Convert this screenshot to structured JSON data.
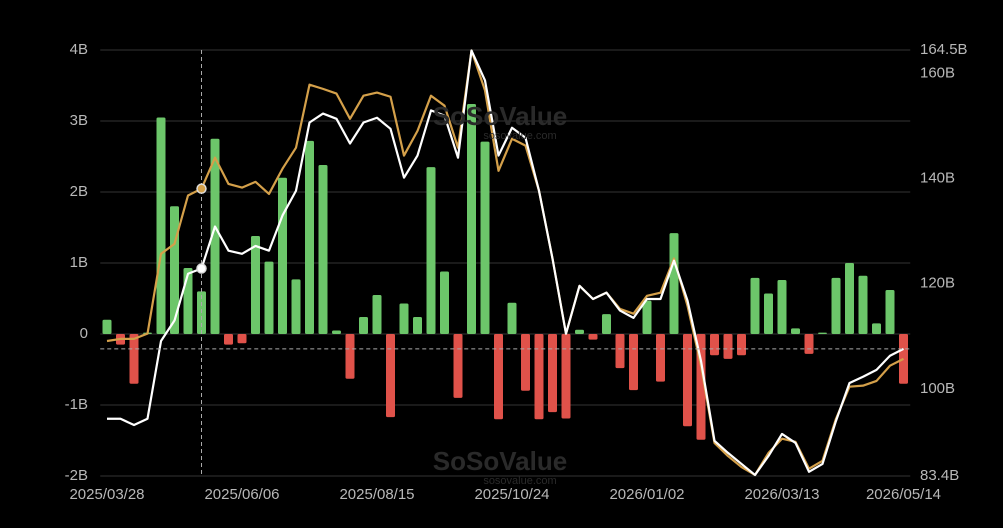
{
  "chart_data": {
    "type": "bar",
    "watermark": "SoSoValue",
    "watermark_url": "sosovalue.com",
    "categories": [
      "2025/03/28",
      null,
      null,
      null,
      null,
      null,
      null,
      null,
      null,
      null,
      "2025/06/06",
      null,
      null,
      null,
      null,
      null,
      null,
      null,
      null,
      null,
      "2025/08/15",
      null,
      null,
      null,
      null,
      null,
      null,
      null,
      null,
      null,
      "2025/10/24",
      null,
      null,
      null,
      null,
      null,
      null,
      null,
      null,
      null,
      "2026/01/02",
      null,
      null,
      null,
      null,
      null,
      null,
      null,
      null,
      null,
      "2026/03/13",
      null,
      null,
      null,
      null,
      null,
      null,
      null,
      null,
      "2026/05/14"
    ],
    "ylim": [
      -2,
      4
    ],
    "yticks": [
      {
        "value": -2,
        "label": "-2B"
      },
      {
        "value": -1,
        "label": "-1B"
      },
      0,
      {
        "value": 1,
        "label": "1B"
      },
      {
        "value": 2,
        "label": "2B"
      },
      {
        "value": 3,
        "label": "3B"
      },
      {
        "value": 4,
        "label": "4B"
      }
    ],
    "y2lim": [
      83.4,
      164.5
    ],
    "y2ticks": [
      {
        "value": 83.4,
        "label": "83.4B"
      },
      {
        "value": 100,
        "label": "100B"
      },
      {
        "value": 120,
        "label": "120B"
      },
      {
        "value": 140,
        "label": "140B"
      },
      {
        "value": 160,
        "label": "160B"
      },
      {
        "value": 164.5,
        "label": "164.5B"
      }
    ],
    "grid": true,
    "series": [
      {
        "type": "bar",
        "color": "#6cc66a",
        "negative_color": "#e0524a",
        "values": [
          0.2,
          -0.15,
          -0.7,
          0.02,
          3.05,
          1.8,
          0.93,
          0.6,
          2.75,
          -0.15,
          -0.13,
          1.38,
          1.02,
          2.2,
          0.77,
          2.72,
          2.38,
          0.05,
          -0.63,
          0.24,
          0.55,
          -1.17,
          0.43,
          0.24,
          2.35,
          0.88,
          -0.9,
          3.24,
          2.71,
          -1.2,
          0.44,
          -0.8,
          -1.2,
          -1.1,
          -1.19,
          0.06,
          -0.08,
          0.28,
          -0.48,
          -0.79,
          0.47,
          -0.67,
          1.42,
          -1.3,
          -1.49,
          -0.3,
          -0.35,
          -0.3,
          0.79,
          0.57,
          0.76,
          0.08,
          -0.28,
          0.02,
          0.79,
          1.0,
          0.82,
          0.15,
          0.62,
          -0.7
        ]
      },
      {
        "type": "line",
        "axis": "y2",
        "color": "#d4a04a",
        "values": [
          109.1,
          109.5,
          109.5,
          110.5,
          125.7,
          127.6,
          136.8,
          138.1,
          144.0,
          139.0,
          138.3,
          139.4,
          137.1,
          141.9,
          145.9,
          157.9,
          157.1,
          156.2,
          151.4,
          155.8,
          156.4,
          155.6,
          144.4,
          149.1,
          155.8,
          153.9,
          145.9,
          164.4,
          156.8,
          141.5,
          147.6,
          146.3,
          137.7,
          124.8,
          110.5,
          119.6,
          117.1,
          118.3,
          115.2,
          114.3,
          117.7,
          118.3,
          124.8,
          115.8,
          104.4,
          89.7,
          87.2,
          85.1,
          83.6,
          87.8,
          90.5,
          89.9,
          84.8,
          86.3,
          94.3,
          100.4,
          100.6,
          101.5,
          104.4,
          105.7
        ]
      },
      {
        "type": "line",
        "axis": "y2",
        "color": "#ffffff",
        "values": [
          94.3,
          94.3,
          93.1,
          94.3,
          109.1,
          113.0,
          121.9,
          122.9,
          130.9,
          126.3,
          125.7,
          127.2,
          126.3,
          133.0,
          137.7,
          150.7,
          152.4,
          151.4,
          146.7,
          150.7,
          151.6,
          149.5,
          140.2,
          144.4,
          153.0,
          152.0,
          144.0,
          164.4,
          158.7,
          144.4,
          149.7,
          147.8,
          137.7,
          124.8,
          110.5,
          119.6,
          117.1,
          118.3,
          114.9,
          113.5,
          117.1,
          117.1,
          124.4,
          116.8,
          105.3,
          90.1,
          87.8,
          85.7,
          83.6,
          87.2,
          91.4,
          89.7,
          84.2,
          85.7,
          93.9,
          101.1,
          102.3,
          103.6,
          106.3,
          107.6
        ]
      }
    ]
  }
}
